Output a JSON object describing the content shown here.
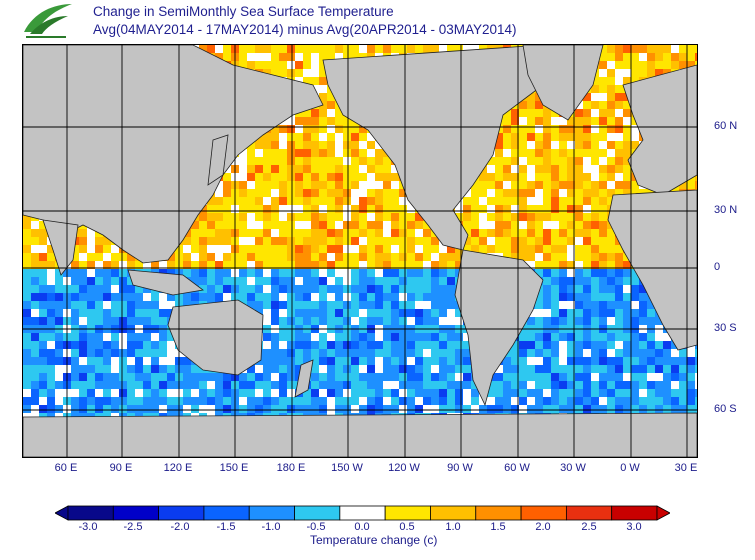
{
  "title_line1": "Change in SemiMonthly Sea Surface Temperature",
  "title_line2": "Avg(04MAY2014 - 17MAY2014) minus Avg(20APR2014 - 03MAY2014)",
  "logo_icon": "swoosh-logo-icon",
  "longitude_labels": [
    "60 E",
    "90 E",
    "120 E",
    "150 E",
    "180 E",
    "150 W",
    "120 W",
    "90 W",
    "60 W",
    "30 W",
    "0 W",
    "30 E"
  ],
  "latitude_labels": [
    "60 N",
    "30 N",
    "0",
    "30 S",
    "60 S"
  ],
  "colorbar": {
    "title": "Temperature change  (c)",
    "tick_labels": [
      "-3.0",
      "-2.5",
      "-2.0",
      "-1.5",
      "-1.0",
      "-0.5",
      "0.0",
      "0.5",
      "1.0",
      "1.5",
      "2.0",
      "2.5",
      "3.0"
    ],
    "colors": [
      "#08088a",
      "#0000c8",
      "#0a3cf0",
      "#0a64ff",
      "#1e90ff",
      "#2ec8f0",
      "#ffffff",
      "#ffe600",
      "#ffc000",
      "#ff9000",
      "#ff6000",
      "#e83010",
      "#c80000"
    ]
  },
  "land_color": "#c3c3c3"
}
